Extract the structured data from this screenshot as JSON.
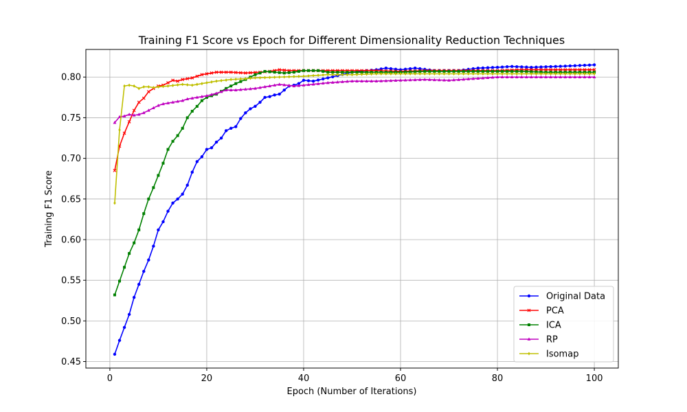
{
  "chart_data": {
    "type": "line",
    "title": "Training F1 Score vs Epoch for Different Dimensionality Reduction Techniques",
    "xlabel": "Epoch (Number of Iterations)",
    "ylabel": "Training F1 Score",
    "xlim": [
      -4.95,
      104.95
    ],
    "ylim": [
      0.442,
      0.834
    ],
    "xticks": [
      0,
      20,
      40,
      60,
      80,
      100
    ],
    "xtick_labels": [
      "0",
      "20",
      "40",
      "60",
      "80",
      "100"
    ],
    "yticks": [
      0.45,
      0.5,
      0.55,
      0.6,
      0.65,
      0.7,
      0.75,
      0.8
    ],
    "ytick_labels": [
      "0.45",
      "0.50",
      "0.55",
      "0.60",
      "0.65",
      "0.70",
      "0.75",
      "0.80"
    ],
    "grid": true,
    "legend_position": "lower-right",
    "series": [
      {
        "name": "Original Data",
        "color": "#0000ff",
        "marker": "circle",
        "keypoints": [
          [
            1,
            0.459
          ],
          [
            2,
            0.476
          ],
          [
            3,
            0.492
          ],
          [
            4,
            0.508
          ],
          [
            5,
            0.529
          ],
          [
            6,
            0.545
          ],
          [
            7,
            0.561
          ],
          [
            8,
            0.575
          ],
          [
            9,
            0.592
          ],
          [
            10,
            0.612
          ],
          [
            11,
            0.622
          ],
          [
            12,
            0.635
          ],
          [
            13,
            0.645
          ],
          [
            14,
            0.65
          ],
          [
            15,
            0.656
          ],
          [
            16,
            0.667
          ],
          [
            17,
            0.683
          ],
          [
            18,
            0.696
          ],
          [
            19,
            0.702
          ],
          [
            20,
            0.711
          ],
          [
            21,
            0.713
          ],
          [
            22,
            0.72
          ],
          [
            23,
            0.725
          ],
          [
            24,
            0.734
          ],
          [
            25,
            0.737
          ],
          [
            26,
            0.739
          ],
          [
            27,
            0.749
          ],
          [
            28,
            0.756
          ],
          [
            29,
            0.761
          ],
          [
            30,
            0.764
          ],
          [
            31,
            0.769
          ],
          [
            32,
            0.775
          ],
          [
            33,
            0.776
          ],
          [
            34,
            0.778
          ],
          [
            35,
            0.779
          ],
          [
            36,
            0.784
          ],
          [
            37,
            0.789
          ],
          [
            38,
            0.79
          ],
          [
            39,
            0.792
          ],
          [
            40,
            0.796
          ],
          [
            42,
            0.795
          ],
          [
            45,
            0.799
          ],
          [
            50,
            0.806
          ],
          [
            55,
            0.809
          ],
          [
            57,
            0.811
          ],
          [
            60,
            0.809
          ],
          [
            63,
            0.811
          ],
          [
            67,
            0.808
          ],
          [
            72,
            0.808
          ],
          [
            76,
            0.811
          ],
          [
            80,
            0.812
          ],
          [
            83,
            0.813
          ],
          [
            87,
            0.812
          ],
          [
            92,
            0.813
          ],
          [
            96,
            0.814
          ],
          [
            100,
            0.815
          ]
        ]
      },
      {
        "name": "PCA",
        "color": "#ff0000",
        "marker": "x",
        "keypoints": [
          [
            1,
            0.685
          ],
          [
            2,
            0.715
          ],
          [
            3,
            0.731
          ],
          [
            4,
            0.745
          ],
          [
            5,
            0.759
          ],
          [
            6,
            0.769
          ],
          [
            7,
            0.774
          ],
          [
            8,
            0.782
          ],
          [
            9,
            0.786
          ],
          [
            10,
            0.789
          ],
          [
            11,
            0.79
          ],
          [
            12,
            0.793
          ],
          [
            13,
            0.796
          ],
          [
            14,
            0.795
          ],
          [
            15,
            0.797
          ],
          [
            16,
            0.798
          ],
          [
            17,
            0.799
          ],
          [
            18,
            0.801
          ],
          [
            19,
            0.803
          ],
          [
            20,
            0.804
          ],
          [
            22,
            0.806
          ],
          [
            25,
            0.806
          ],
          [
            28,
            0.805
          ],
          [
            31,
            0.806
          ],
          [
            33,
            0.807
          ],
          [
            35,
            0.809
          ],
          [
            37,
            0.808
          ],
          [
            40,
            0.808
          ],
          [
            45,
            0.808
          ],
          [
            50,
            0.808
          ],
          [
            55,
            0.808
          ],
          [
            60,
            0.807
          ],
          [
            65,
            0.808
          ],
          [
            70,
            0.808
          ],
          [
            75,
            0.808
          ],
          [
            80,
            0.808
          ],
          [
            85,
            0.809
          ],
          [
            90,
            0.809
          ],
          [
            95,
            0.809
          ],
          [
            100,
            0.809
          ]
        ]
      },
      {
        "name": "ICA",
        "color": "#008000",
        "marker": "square",
        "keypoints": [
          [
            1,
            0.532
          ],
          [
            2,
            0.549
          ],
          [
            3,
            0.566
          ],
          [
            4,
            0.583
          ],
          [
            5,
            0.596
          ],
          [
            6,
            0.612
          ],
          [
            7,
            0.632
          ],
          [
            8,
            0.65
          ],
          [
            9,
            0.664
          ],
          [
            10,
            0.679
          ],
          [
            11,
            0.694
          ],
          [
            12,
            0.711
          ],
          [
            13,
            0.721
          ],
          [
            14,
            0.728
          ],
          [
            15,
            0.737
          ],
          [
            16,
            0.75
          ],
          [
            17,
            0.758
          ],
          [
            18,
            0.764
          ],
          [
            19,
            0.771
          ],
          [
            20,
            0.775
          ],
          [
            22,
            0.779
          ],
          [
            24,
            0.786
          ],
          [
            26,
            0.792
          ],
          [
            28,
            0.797
          ],
          [
            30,
            0.803
          ],
          [
            32,
            0.807
          ],
          [
            34,
            0.806
          ],
          [
            36,
            0.805
          ],
          [
            38,
            0.806
          ],
          [
            40,
            0.808
          ],
          [
            43,
            0.808
          ],
          [
            45,
            0.806
          ],
          [
            50,
            0.806
          ],
          [
            55,
            0.806
          ],
          [
            60,
            0.806
          ],
          [
            65,
            0.807
          ],
          [
            70,
            0.807
          ],
          [
            75,
            0.807
          ],
          [
            80,
            0.807
          ],
          [
            85,
            0.807
          ],
          [
            90,
            0.806
          ],
          [
            95,
            0.806
          ],
          [
            100,
            0.806
          ]
        ]
      },
      {
        "name": "RP",
        "color": "#bf00bf",
        "marker": "triangle",
        "keypoints": [
          [
            1,
            0.744
          ],
          [
            2,
            0.751
          ],
          [
            3,
            0.752
          ],
          [
            4,
            0.754
          ],
          [
            5,
            0.753
          ],
          [
            6,
            0.754
          ],
          [
            7,
            0.756
          ],
          [
            8,
            0.759
          ],
          [
            9,
            0.762
          ],
          [
            10,
            0.765
          ],
          [
            11,
            0.767
          ],
          [
            12,
            0.768
          ],
          [
            13,
            0.769
          ],
          [
            14,
            0.77
          ],
          [
            15,
            0.771
          ],
          [
            16,
            0.773
          ],
          [
            17,
            0.774
          ],
          [
            18,
            0.775
          ],
          [
            19,
            0.776
          ],
          [
            20,
            0.777
          ],
          [
            22,
            0.78
          ],
          [
            24,
            0.784
          ],
          [
            26,
            0.784
          ],
          [
            28,
            0.785
          ],
          [
            30,
            0.786
          ],
          [
            32,
            0.788
          ],
          [
            35,
            0.791
          ],
          [
            38,
            0.789
          ],
          [
            40,
            0.79
          ],
          [
            45,
            0.793
          ],
          [
            50,
            0.795
          ],
          [
            55,
            0.795
          ],
          [
            60,
            0.796
          ],
          [
            65,
            0.797
          ],
          [
            70,
            0.796
          ],
          [
            75,
            0.798
          ],
          [
            80,
            0.8
          ],
          [
            85,
            0.8
          ],
          [
            90,
            0.8
          ],
          [
            95,
            0.8
          ],
          [
            100,
            0.8
          ]
        ]
      },
      {
        "name": "Isomap",
        "color": "#bfbf00",
        "marker": "diamond",
        "keypoints": [
          [
            1,
            0.645
          ],
          [
            2,
            0.735
          ],
          [
            3,
            0.789
          ],
          [
            4,
            0.79
          ],
          [
            5,
            0.789
          ],
          [
            6,
            0.786
          ],
          [
            7,
            0.788
          ],
          [
            8,
            0.788
          ],
          [
            9,
            0.787
          ],
          [
            10,
            0.788
          ],
          [
            12,
            0.789
          ],
          [
            15,
            0.791
          ],
          [
            17,
            0.79
          ],
          [
            20,
            0.793
          ],
          [
            22,
            0.795
          ],
          [
            25,
            0.797
          ],
          [
            28,
            0.798
          ],
          [
            30,
            0.799
          ],
          [
            35,
            0.8
          ],
          [
            40,
            0.801
          ],
          [
            45,
            0.803
          ],
          [
            50,
            0.803
          ],
          [
            55,
            0.804
          ],
          [
            60,
            0.804
          ],
          [
            65,
            0.804
          ],
          [
            70,
            0.804
          ],
          [
            75,
            0.804
          ],
          [
            80,
            0.804
          ],
          [
            85,
            0.804
          ],
          [
            90,
            0.804
          ],
          [
            95,
            0.804
          ],
          [
            100,
            0.804
          ]
        ]
      }
    ]
  }
}
